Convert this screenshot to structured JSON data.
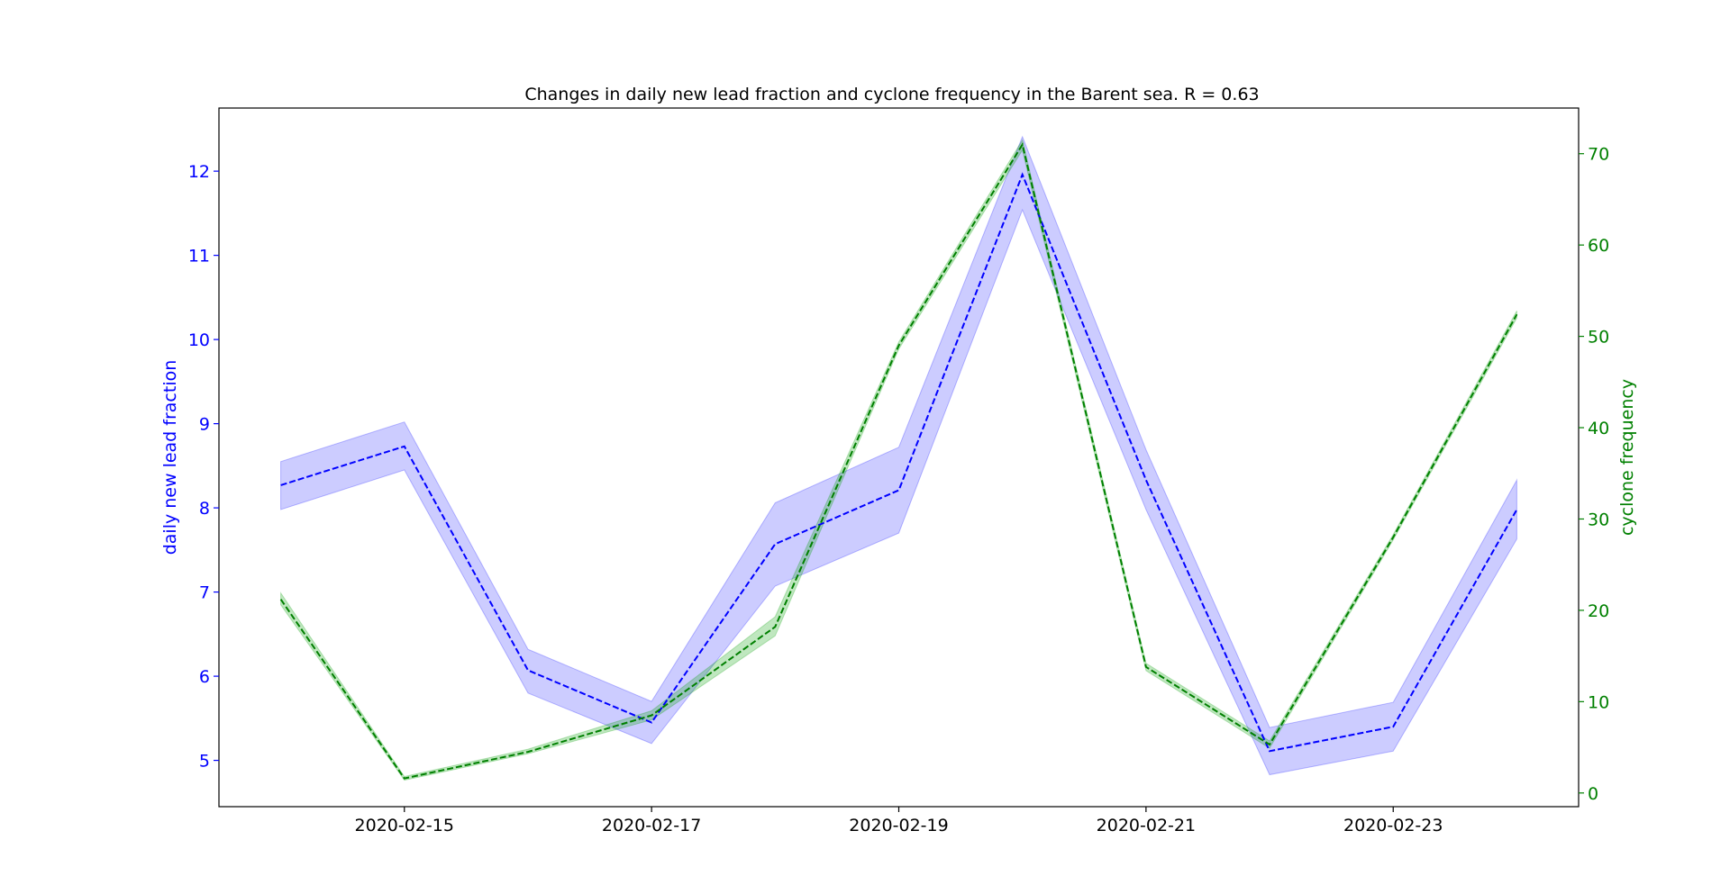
{
  "chart_data": {
    "type": "line",
    "title": "Changes in daily new lead fraction and cyclone frequency in the Barent sea. R = 0.63",
    "x": [
      "2020-02-14",
      "2020-02-15",
      "2020-02-16",
      "2020-02-17",
      "2020-02-18",
      "2020-02-19",
      "2020-02-20",
      "2020-02-21",
      "2020-02-22",
      "2020-02-23",
      "2020-02-24"
    ],
    "x_tick_labels": [
      "2020-02-15",
      "2020-02-17",
      "2020-02-19",
      "2020-02-21",
      "2020-02-23"
    ],
    "xlim": [
      "2020-02-13T12:00",
      "2020-02-24T12:00"
    ],
    "grid": false,
    "left_axis": {
      "ylabel": "daily new lead fraction",
      "color": "#0000ff",
      "ylim": [
        4.45,
        12.75
      ],
      "ticks": [
        5,
        6,
        7,
        8,
        9,
        10,
        11,
        12
      ]
    },
    "right_axis": {
      "ylabel": "cyclone frequency",
      "color": "#008000",
      "ylim": [
        -1.5,
        75
      ],
      "ticks": [
        0,
        10,
        20,
        30,
        40,
        50,
        60,
        70
      ]
    },
    "series": [
      {
        "axis": "left",
        "color": "#0000ff",
        "band_color": "#0000ff",
        "values": [
          8.27,
          8.73,
          6.07,
          5.45,
          7.57,
          8.21,
          11.96,
          8.33,
          5.11,
          5.4,
          7.98
        ],
        "lower": [
          7.98,
          8.45,
          5.8,
          5.2,
          7.07,
          7.7,
          11.54,
          7.98,
          4.83,
          5.11,
          7.63
        ],
        "upper": [
          8.55,
          9.02,
          6.32,
          5.7,
          8.06,
          8.72,
          12.41,
          8.69,
          5.39,
          5.69,
          8.33
        ]
      },
      {
        "axis": "right",
        "color": "#008000",
        "band_color": "#00a000",
        "values": [
          21.2,
          1.6,
          4.5,
          8.5,
          18.2,
          49.0,
          71.0,
          13.8,
          5.3,
          28.0,
          52.4
        ],
        "lower": [
          20.6,
          1.4,
          4.3,
          8.0,
          17.2,
          48.6,
          70.4,
          13.4,
          4.9,
          27.7,
          52.0
        ],
        "upper": [
          21.9,
          1.8,
          4.8,
          9.0,
          19.3,
          49.4,
          71.5,
          14.2,
          5.7,
          28.3,
          52.8
        ]
      }
    ]
  }
}
